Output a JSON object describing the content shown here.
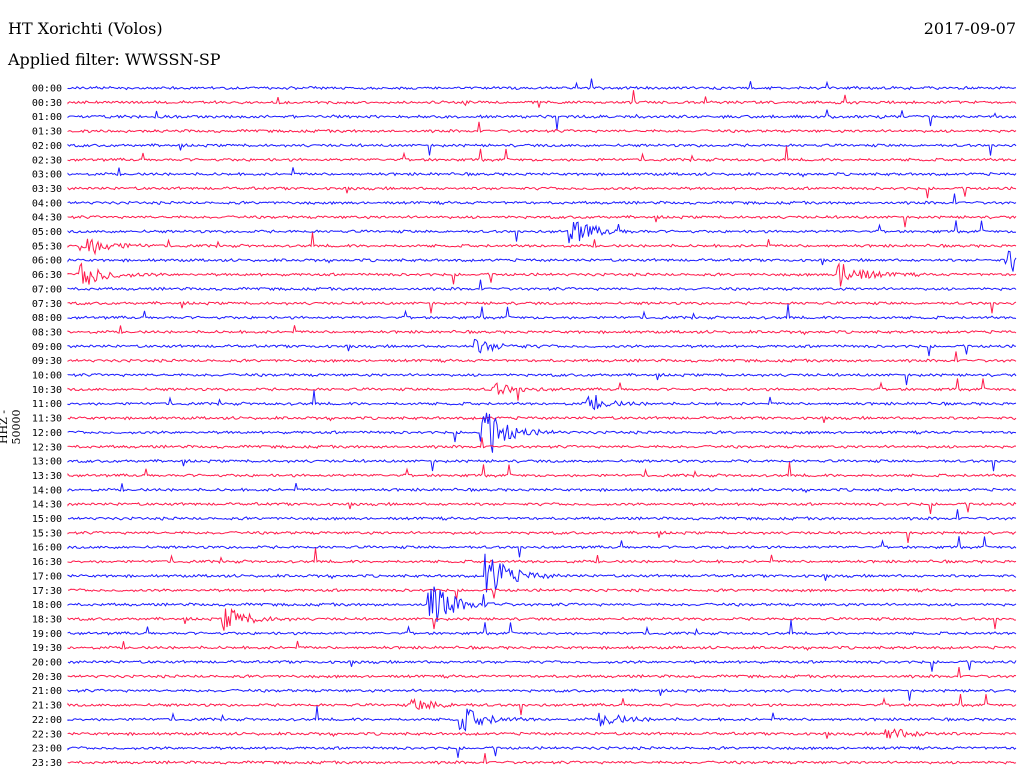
{
  "header": {
    "station": "HT Xorichti (Volos)",
    "date": "2017-09-07",
    "filter": "Applied filter: WWSSN-SP"
  },
  "chart_data": {
    "type": "line",
    "channel_label": "HHZ - 50000",
    "colors": {
      "even": "#1a1aff",
      "odd": "#ff1a4b"
    },
    "rows": [
      "00:00",
      "00:30",
      "01:00",
      "01:30",
      "02:00",
      "02:30",
      "03:00",
      "03:30",
      "04:00",
      "04:30",
      "05:00",
      "05:30",
      "06:00",
      "06:30",
      "07:00",
      "07:30",
      "08:00",
      "08:30",
      "09:00",
      "09:30",
      "10:00",
      "10:30",
      "11:00",
      "11:30",
      "12:00",
      "12:30",
      "13:00",
      "13:30",
      "14:00",
      "14:30",
      "15:00",
      "15:30",
      "16:00",
      "16:30",
      "17:00",
      "17:30",
      "18:00",
      "18:30",
      "19:00",
      "19:30",
      "20:00",
      "20:30",
      "21:00",
      "21:30",
      "22:00",
      "22:30",
      "23:00",
      "23:30"
    ],
    "events": [
      {
        "row": "05:00",
        "minute": 16,
        "amp": "medium"
      },
      {
        "row": "05:30",
        "minute": 0.5,
        "amp": "medium"
      },
      {
        "row": "06:00",
        "minute": 29.8,
        "amp": "medium"
      },
      {
        "row": "06:30",
        "minute": 0.5,
        "amp": "medium"
      },
      {
        "row": "06:30",
        "minute": 24.5,
        "amp": "medium"
      },
      {
        "row": "09:00",
        "minute": 13,
        "amp": "small"
      },
      {
        "row": "10:30",
        "minute": 13.5,
        "amp": "small"
      },
      {
        "row": "11:00",
        "minute": 16.5,
        "amp": "small"
      },
      {
        "row": "12:00",
        "minute": 13.2,
        "amp": "large"
      },
      {
        "row": "17:00",
        "minute": 13.3,
        "amp": "large"
      },
      {
        "row": "18:00",
        "minute": 11.5,
        "amp": "large"
      },
      {
        "row": "18:30",
        "minute": 5,
        "amp": "medium"
      },
      {
        "row": "21:30",
        "minute": 11,
        "amp": "small"
      },
      {
        "row": "22:00",
        "minute": 12.5,
        "amp": "medium"
      },
      {
        "row": "22:00",
        "minute": 17,
        "amp": "small"
      },
      {
        "row": "22:30",
        "minute": 26,
        "amp": "small"
      }
    ]
  }
}
